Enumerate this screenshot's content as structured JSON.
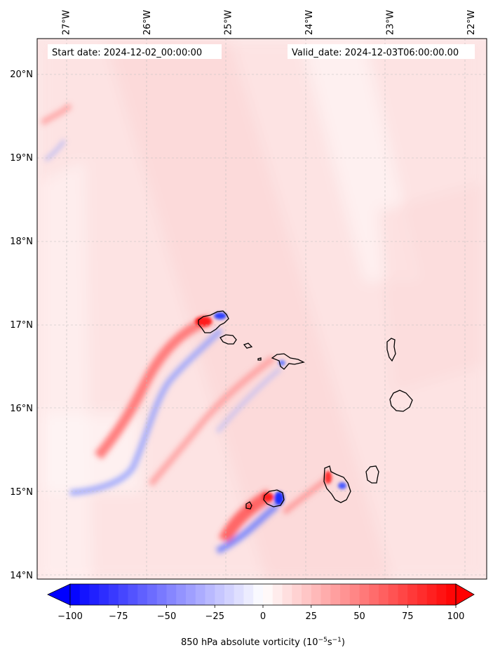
{
  "header": {
    "start_date": "Start date: 2024-12-02_00:00:00",
    "valid_date": "Valid_date: 2024-12-03T06:00:00.00"
  },
  "map": {
    "lon_range": [
      -27.35,
      -21.8
    ],
    "lat_range": [
      13.95,
      20.42
    ],
    "lon_ticks": [
      {
        "value": -27,
        "label": "27°W"
      },
      {
        "value": -26,
        "label": "26°W"
      },
      {
        "value": -25,
        "label": "25°W"
      },
      {
        "value": -24,
        "label": "24°W"
      },
      {
        "value": -23,
        "label": "23°W"
      },
      {
        "value": -22,
        "label": "22°W"
      }
    ],
    "lat_ticks": [
      {
        "value": 20,
        "label": "20°N"
      },
      {
        "value": 19,
        "label": "19°N"
      },
      {
        "value": 18,
        "label": "18°N"
      },
      {
        "value": 17,
        "label": "17°N"
      },
      {
        "value": 16,
        "label": "16°N"
      },
      {
        "value": 15,
        "label": "15°N"
      },
      {
        "value": 14,
        "label": "14°N"
      }
    ],
    "gridlines": true,
    "colors": {
      "background_field": "#fde6e6",
      "positive": "#ff0000",
      "negative": "#0000ff",
      "coast": "#000000"
    }
  },
  "colorbar": {
    "cmap": "bwr",
    "min": -100,
    "max": 100,
    "levels": 40,
    "extend": "both",
    "ticks": [
      {
        "value": -100,
        "label": "−100"
      },
      {
        "value": -75,
        "label": "−75"
      },
      {
        "value": -50,
        "label": "−50"
      },
      {
        "value": -25,
        "label": "−25"
      },
      {
        "value": 0,
        "label": "0"
      },
      {
        "value": 25,
        "label": "25"
      },
      {
        "value": 50,
        "label": "50"
      },
      {
        "value": 75,
        "label": "75"
      },
      {
        "value": 100,
        "label": "100"
      }
    ],
    "label": "850 hPa absolute vorticity (10",
    "label_exp1": "−5",
    "label_mid": "s",
    "label_exp2": "−1",
    "label_end": ")"
  }
}
